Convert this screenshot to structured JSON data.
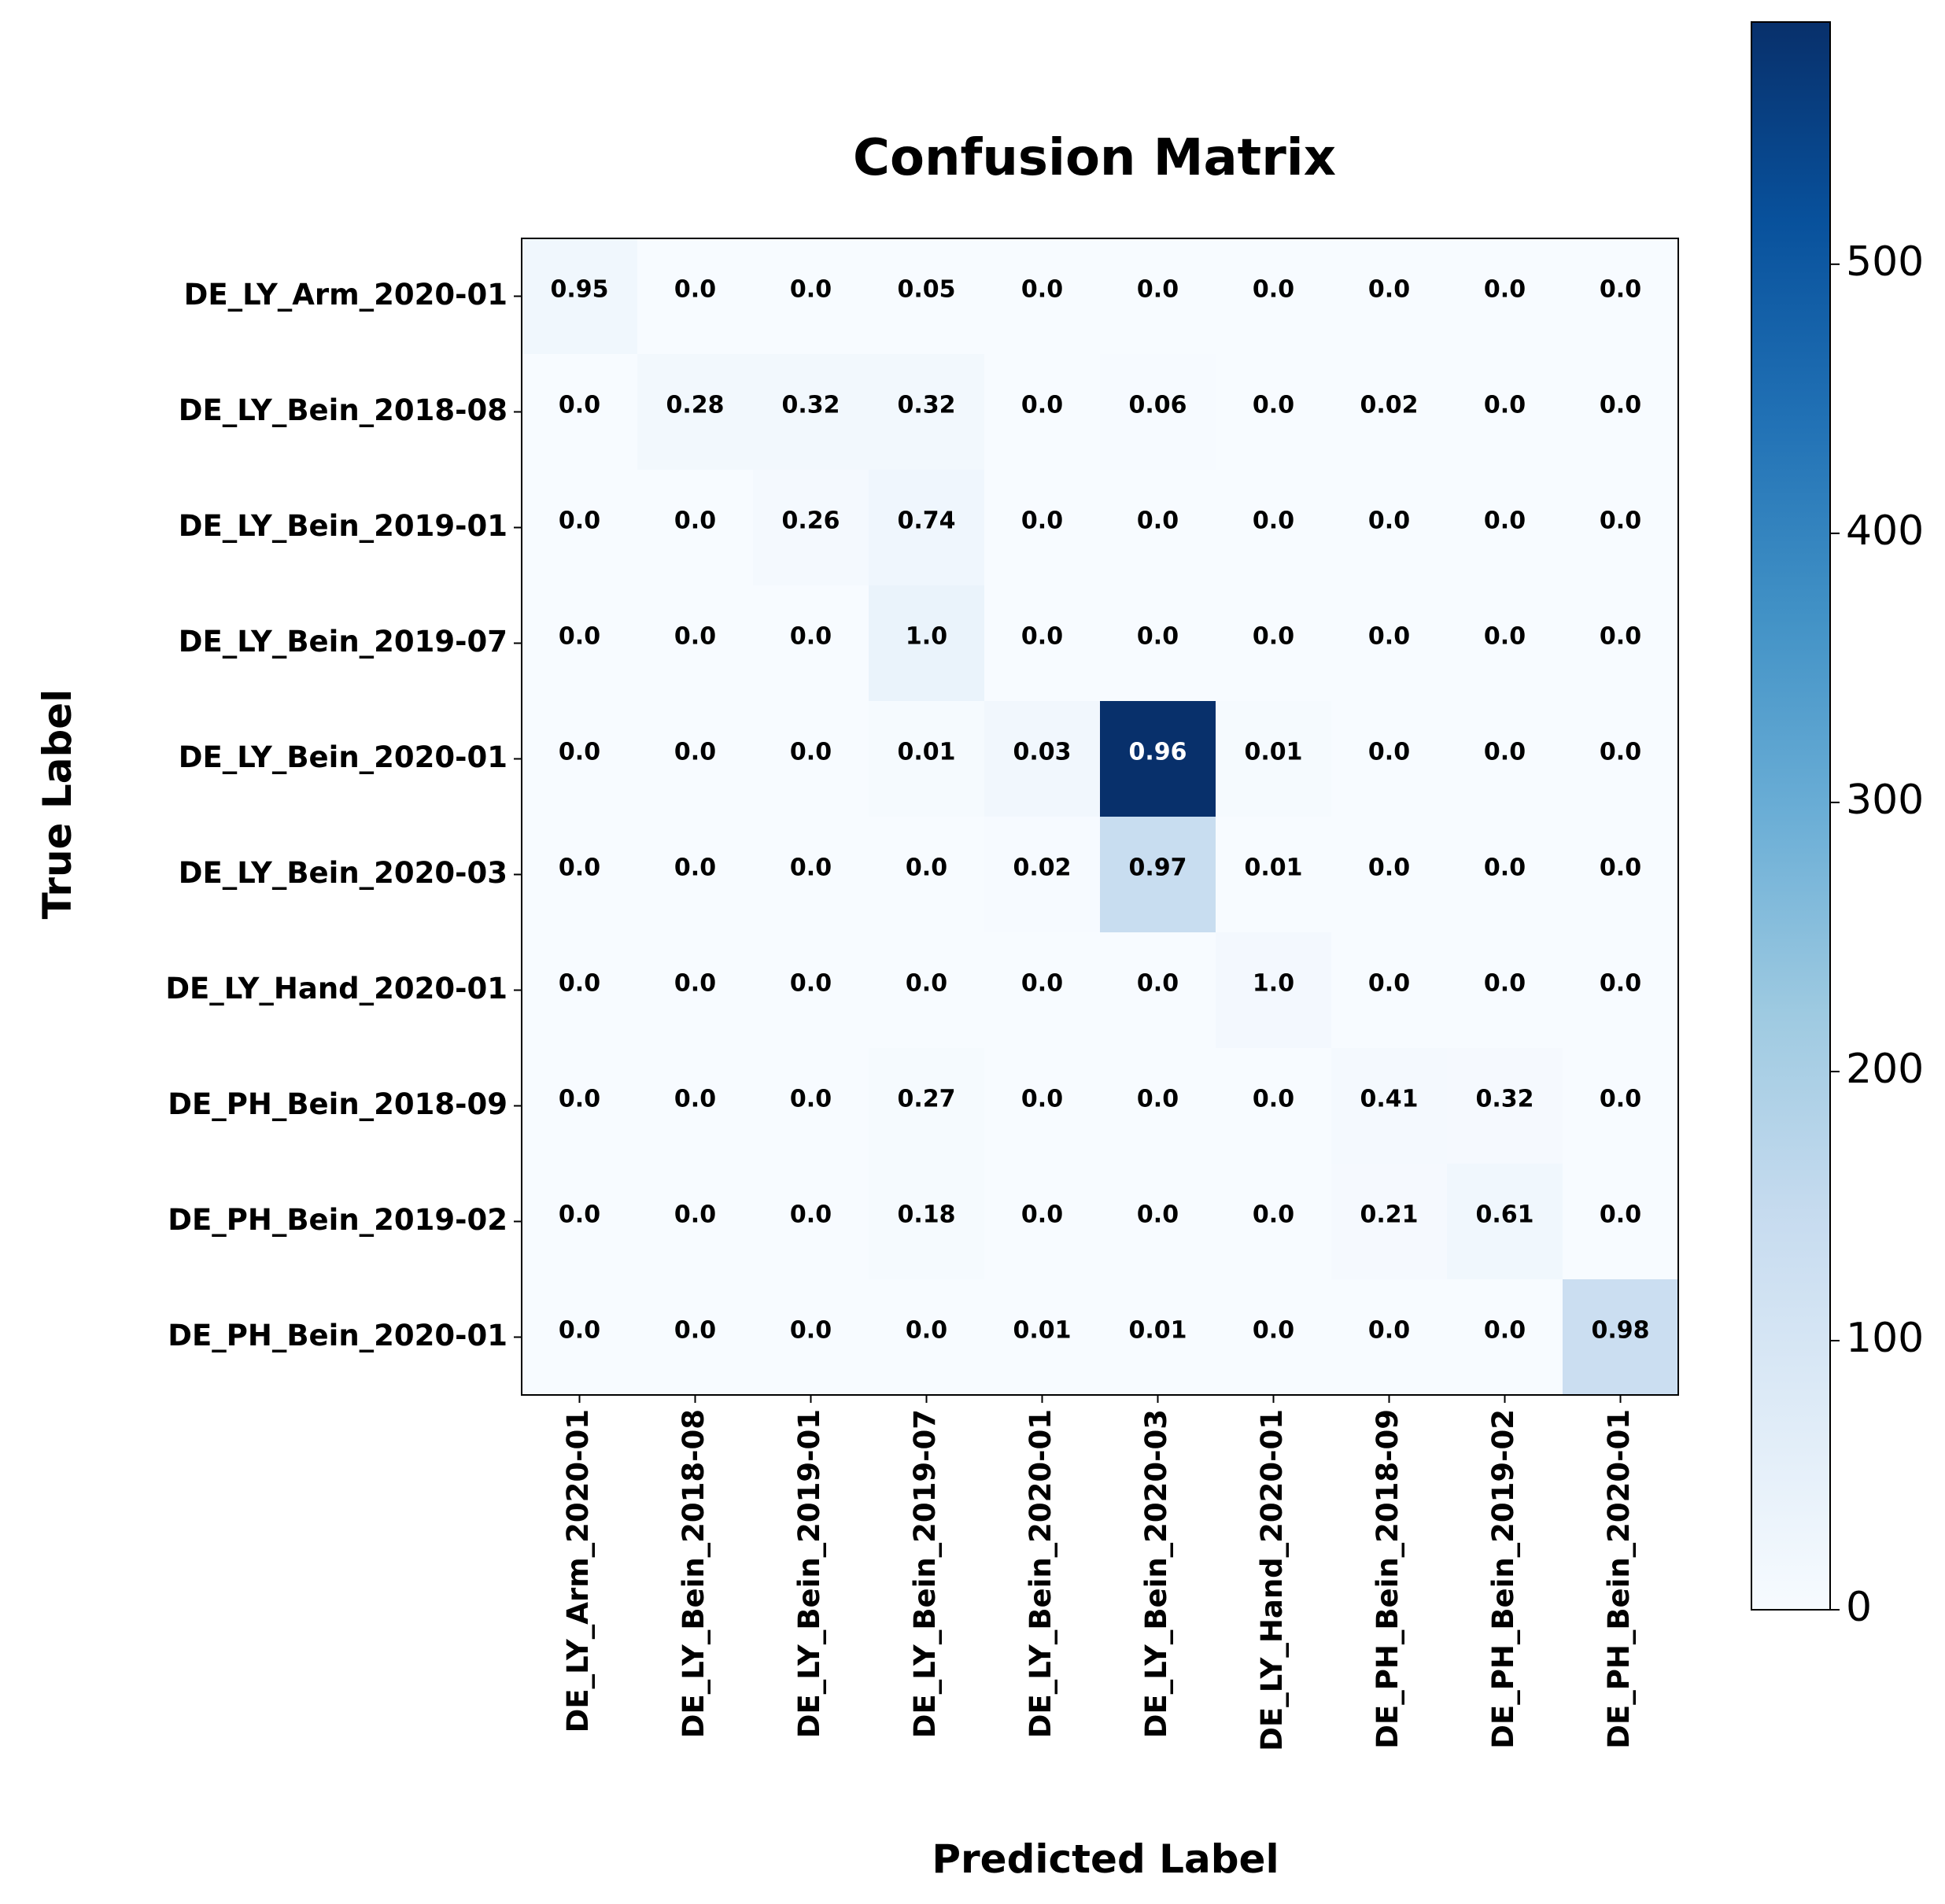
{
  "chart_data": {
    "type": "heatmap",
    "title": "Confusion Matrix",
    "xlabel": "Predicted Label",
    "ylabel": "True Label",
    "row_labels": [
      "DE_LY_Arm_2020-01",
      "DE_LY_Bein_2018-08",
      "DE_LY_Bein_2019-01",
      "DE_LY_Bein_2019-07",
      "DE_LY_Bein_2020-01",
      "DE_LY_Bein_2020-03",
      "DE_LY_Hand_2020-01",
      "DE_PH_Bein_2018-09",
      "DE_PH_Bein_2019-02",
      "DE_PH_Bein_2020-01"
    ],
    "col_labels": [
      "DE_LY_Arm_2020-01",
      "DE_LY_Bein_2018-08",
      "DE_LY_Bein_2019-01",
      "DE_LY_Bein_2019-07",
      "DE_LY_Bein_2020-01",
      "DE_LY_Bein_2020-03",
      "DE_LY_Hand_2020-01",
      "DE_PH_Bein_2018-09",
      "DE_PH_Bein_2019-02",
      "DE_PH_Bein_2020-01"
    ],
    "cell_labels": [
      [
        "0.95",
        "0.0",
        "0.0",
        "0.05",
        "0.0",
        "0.0",
        "0.0",
        "0.0",
        "0.0",
        "0.0"
      ],
      [
        "0.0",
        "0.28",
        "0.32",
        "0.32",
        "0.0",
        "0.06",
        "0.0",
        "0.02",
        "0.0",
        "0.0"
      ],
      [
        "0.0",
        "0.0",
        "0.26",
        "0.74",
        "0.0",
        "0.0",
        "0.0",
        "0.0",
        "0.0",
        "0.0"
      ],
      [
        "0.0",
        "0.0",
        "0.0",
        "1.0",
        "0.0",
        "0.0",
        "0.0",
        "0.0",
        "0.0",
        "0.0"
      ],
      [
        "0.0",
        "0.0",
        "0.0",
        "0.01",
        "0.03",
        "0.96",
        "0.01",
        "0.0",
        "0.0",
        "0.0"
      ],
      [
        "0.0",
        "0.0",
        "0.0",
        "0.0",
        "0.02",
        "0.97",
        "0.01",
        "0.0",
        "0.0",
        "0.0"
      ],
      [
        "0.0",
        "0.0",
        "0.0",
        "0.0",
        "0.0",
        "0.0",
        "1.0",
        "0.0",
        "0.0",
        "0.0"
      ],
      [
        "0.0",
        "0.0",
        "0.0",
        "0.27",
        "0.0",
        "0.0",
        "0.0",
        "0.41",
        "0.32",
        "0.0"
      ],
      [
        "0.0",
        "0.0",
        "0.0",
        "0.18",
        "0.0",
        "0.0",
        "0.0",
        "0.21",
        "0.61",
        "0.0"
      ],
      [
        "0.0",
        "0.0",
        "0.0",
        "0.0",
        "0.01",
        "0.01",
        "0.0",
        "0.0",
        "0.0",
        "0.98"
      ]
    ],
    "counts": [
      [
        20,
        0,
        0,
        1,
        0,
        0,
        0,
        0,
        0,
        0
      ],
      [
        0,
        14,
        16,
        16,
        0,
        3,
        0,
        1,
        0,
        0
      ],
      [
        0,
        0,
        8,
        23,
        0,
        0,
        0,
        0,
        0,
        0
      ],
      [
        0,
        0,
        0,
        38,
        0,
        0,
        0,
        0,
        0,
        0
      ],
      [
        0,
        0,
        0,
        6,
        18,
        590,
        6,
        0,
        0,
        0
      ],
      [
        0,
        0,
        0,
        0,
        3,
        140,
        1,
        0,
        0,
        0
      ],
      [
        0,
        0,
        0,
        0,
        0,
        0,
        13,
        0,
        0,
        0
      ],
      [
        0,
        0,
        0,
        6,
        0,
        0,
        0,
        9,
        7,
        0
      ],
      [
        0,
        0,
        0,
        6,
        0,
        0,
        0,
        7,
        20,
        0
      ],
      [
        0,
        0,
        0,
        0,
        1,
        1,
        0,
        0,
        0,
        132
      ]
    ],
    "colorbar": {
      "colormap": "Blues",
      "vmin": 0,
      "vmax": 590,
      "ticks": [
        0,
        100,
        200,
        300,
        400,
        500
      ]
    },
    "grid": false
  }
}
